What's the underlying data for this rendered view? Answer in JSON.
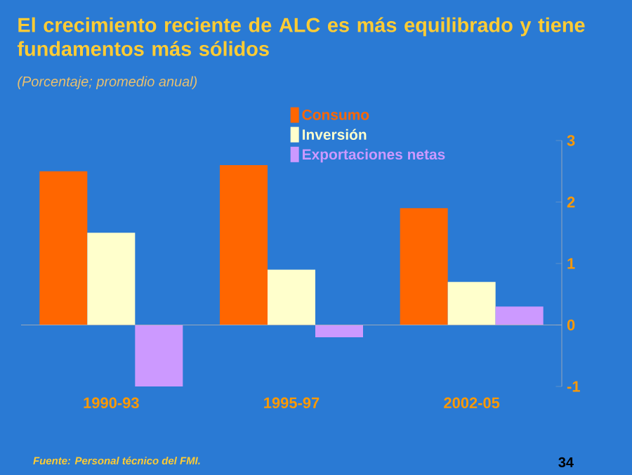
{
  "chart_data": {
    "type": "bar",
    "title": "El crecimiento reciente de ALC es más equilibrado y tiene fundamentos más sólidos",
    "subtitle": "(Porcentaje; promedio anual)",
    "categories": [
      "1990-93",
      "1995-97",
      "2002-05"
    ],
    "series": [
      {
        "name": "Consumo",
        "color": "#ff6600",
        "values": [
          2.5,
          2.6,
          1.9
        ]
      },
      {
        "name": "Inversión",
        "color": "#ffffcc",
        "values": [
          1.5,
          0.9,
          0.7
        ]
      },
      {
        "name": "Exportaciones netas",
        "color": "#cc99ff",
        "values": [
          -1.0,
          -0.2,
          0.3
        ]
      }
    ],
    "ylim": [
      -1,
      3
    ],
    "yticks": [
      -1,
      0,
      1,
      2,
      3
    ],
    "legend": "top",
    "annotations": [
      "Fuente: Personal técnico del FMI.",
      "34"
    ]
  }
}
